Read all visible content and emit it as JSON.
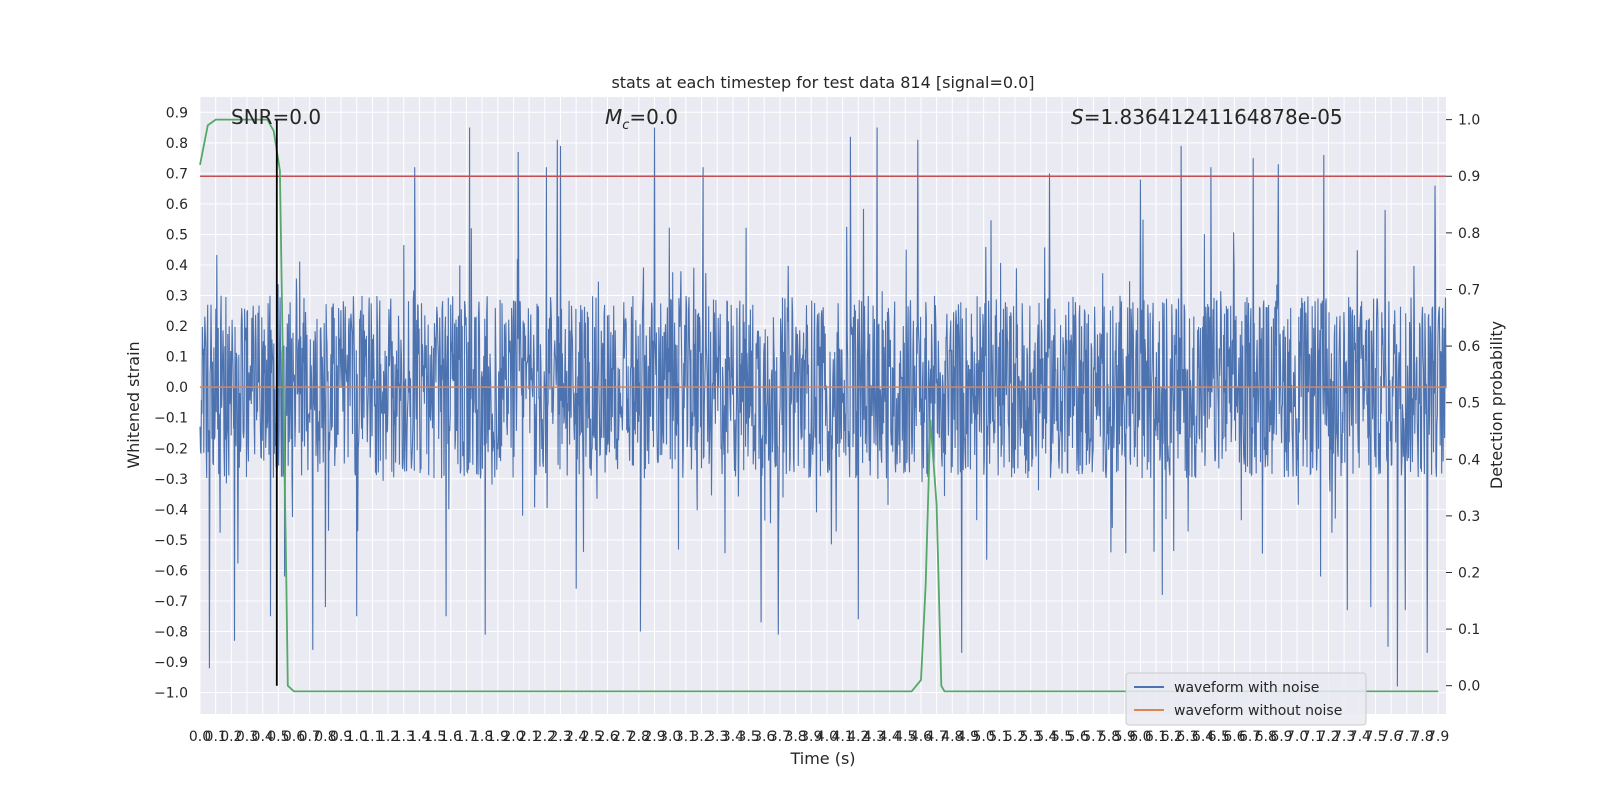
{
  "chart_data": {
    "type": "line",
    "title": "stats at each timestep for test data 814 [signal=0.0]",
    "xlabel": "Time (s)",
    "ylabel": "Whitened strain",
    "y2label": "Detection probability",
    "xlim": [
      0.0,
      7.95
    ],
    "ylim": [
      -1.07,
      0.95
    ],
    "y2lim": [
      -0.05,
      1.04
    ],
    "x_ticks": [
      "0.0",
      "0.1",
      "0.2",
      "0.3",
      "0.4",
      "0.5",
      "0.6",
      "0.7",
      "0.8",
      "0.9",
      "1.0",
      "1.1",
      "1.2",
      "1.3",
      "1.4",
      "1.5",
      "1.6",
      "1.7",
      "1.8",
      "1.9",
      "2.0",
      "2.1",
      "2.2",
      "2.3",
      "2.4",
      "2.5",
      "2.6",
      "2.7",
      "2.8",
      "2.9",
      "3.0",
      "3.1",
      "3.2",
      "3.3",
      "3.4",
      "3.5",
      "3.6",
      "3.7",
      "3.8",
      "3.9",
      "4.0",
      "4.1",
      "4.2",
      "4.3",
      "4.4",
      "4.5",
      "4.6",
      "4.7",
      "4.8",
      "4.9",
      "5.0",
      "5.1",
      "5.2",
      "5.3",
      "5.4",
      "5.5",
      "5.6",
      "5.7",
      "5.8",
      "5.9",
      "6.0",
      "6.1",
      "6.2",
      "6.3",
      "6.4",
      "6.5",
      "6.6",
      "6.7",
      "6.8",
      "6.9",
      "7.0",
      "7.1",
      "7.2",
      "7.3",
      "7.4",
      "7.5",
      "7.6",
      "7.7",
      "7.8",
      "7.9"
    ],
    "y_ticks": [
      "0.9",
      "0.8",
      "0.7",
      "0.6",
      "0.5",
      "0.4",
      "0.3",
      "0.2",
      "0.1",
      "0.0",
      "−0.1",
      "−0.2",
      "−0.3",
      "−0.4",
      "−0.5",
      "−0.6",
      "−0.7",
      "−0.8",
      "−0.9",
      "−1.0"
    ],
    "y2_ticks": [
      "1.0",
      "0.9",
      "0.8",
      "0.7",
      "0.6",
      "0.5",
      "0.4",
      "0.3",
      "0.2",
      "0.1",
      "0.0"
    ],
    "annotations": {
      "snr": "SNR=0.0",
      "mc_symbol": "M",
      "mc_sub": "c",
      "mc_value": "=0.0",
      "s_symbol": "S",
      "s_value": "=1.83641241164878e-05"
    },
    "threshold": {
      "value": 0.9,
      "axis": "y2",
      "color": "#c44e52"
    },
    "event_marker": {
      "x": 0.49,
      "color": "#000000"
    },
    "series": [
      {
        "name": "waveform with noise",
        "color": "#4c72b0",
        "style": "dense noise, amplitude ~0.3 to 0.5 with spikes to ~0.85 and down to ~-0.98",
        "peaks": [
          [
            0.06,
            -0.92
          ],
          [
            0.22,
            -0.83
          ],
          [
            0.45,
            -0.75
          ],
          [
            0.54,
            -0.62
          ],
          [
            0.72,
            -0.86
          ],
          [
            0.8,
            -0.72
          ],
          [
            1.0,
            -0.75
          ],
          [
            1.37,
            0.72
          ],
          [
            1.57,
            -0.75
          ],
          [
            1.72,
            0.85
          ],
          [
            1.82,
            -0.81
          ],
          [
            2.03,
            0.77
          ],
          [
            2.21,
            0.72
          ],
          [
            2.28,
            0.81
          ],
          [
            2.3,
            0.79
          ],
          [
            2.4,
            -0.66
          ],
          [
            2.81,
            -0.8
          ],
          [
            2.9,
            0.85
          ],
          [
            3.21,
            0.72
          ],
          [
            3.58,
            -0.77
          ],
          [
            3.69,
            -0.81
          ],
          [
            4.15,
            0.82
          ],
          [
            4.2,
            -0.76
          ],
          [
            4.32,
            0.85
          ],
          [
            4.58,
            0.81
          ],
          [
            4.86,
            -0.87
          ],
          [
            5.42,
            0.7
          ],
          [
            6.0,
            0.68
          ],
          [
            6.14,
            -0.68
          ],
          [
            6.26,
            0.79
          ],
          [
            6.45,
            0.72
          ],
          [
            6.72,
            0.75
          ],
          [
            6.88,
            0.73
          ],
          [
            7.15,
            -0.62
          ],
          [
            7.17,
            0.76
          ],
          [
            7.32,
            -0.73
          ],
          [
            7.47,
            -0.72
          ],
          [
            7.58,
            -0.85
          ],
          [
            7.64,
            -0.98
          ],
          [
            7.69,
            -0.73
          ],
          [
            7.83,
            -0.87
          ],
          [
            7.88,
            0.66
          ]
        ]
      },
      {
        "name": "waveform without noise",
        "color": "#dd8452",
        "x": [
          0.0,
          7.95
        ],
        "y": [
          0.0,
          0.0
        ]
      },
      {
        "color": "#55a868",
        "axis": "y2",
        "x": [
          0.0,
          0.05,
          0.1,
          0.2,
          0.3,
          0.43,
          0.47,
          0.51,
          0.55,
          0.56,
          0.6,
          0.65,
          1.0,
          2.0,
          3.0,
          4.0,
          4.54,
          4.6,
          4.63,
          4.66,
          4.7,
          4.73,
          4.75,
          4.8,
          5.0,
          6.0,
          7.0,
          7.9
        ],
        "y": [
          0.92,
          0.99,
          1.0,
          1.0,
          1.0,
          1.0,
          0.98,
          0.91,
          0.2,
          0.0,
          -0.01,
          -0.01,
          -0.01,
          -0.01,
          -0.01,
          -0.01,
          -0.01,
          0.01,
          0.18,
          0.47,
          0.32,
          0.0,
          -0.01,
          -0.01,
          -0.01,
          -0.01,
          -0.01,
          -0.01
        ]
      }
    ],
    "legend": {
      "location": "lower-right",
      "entries": [
        "waveform with noise",
        "waveform without noise"
      ]
    },
    "grid": true
  }
}
